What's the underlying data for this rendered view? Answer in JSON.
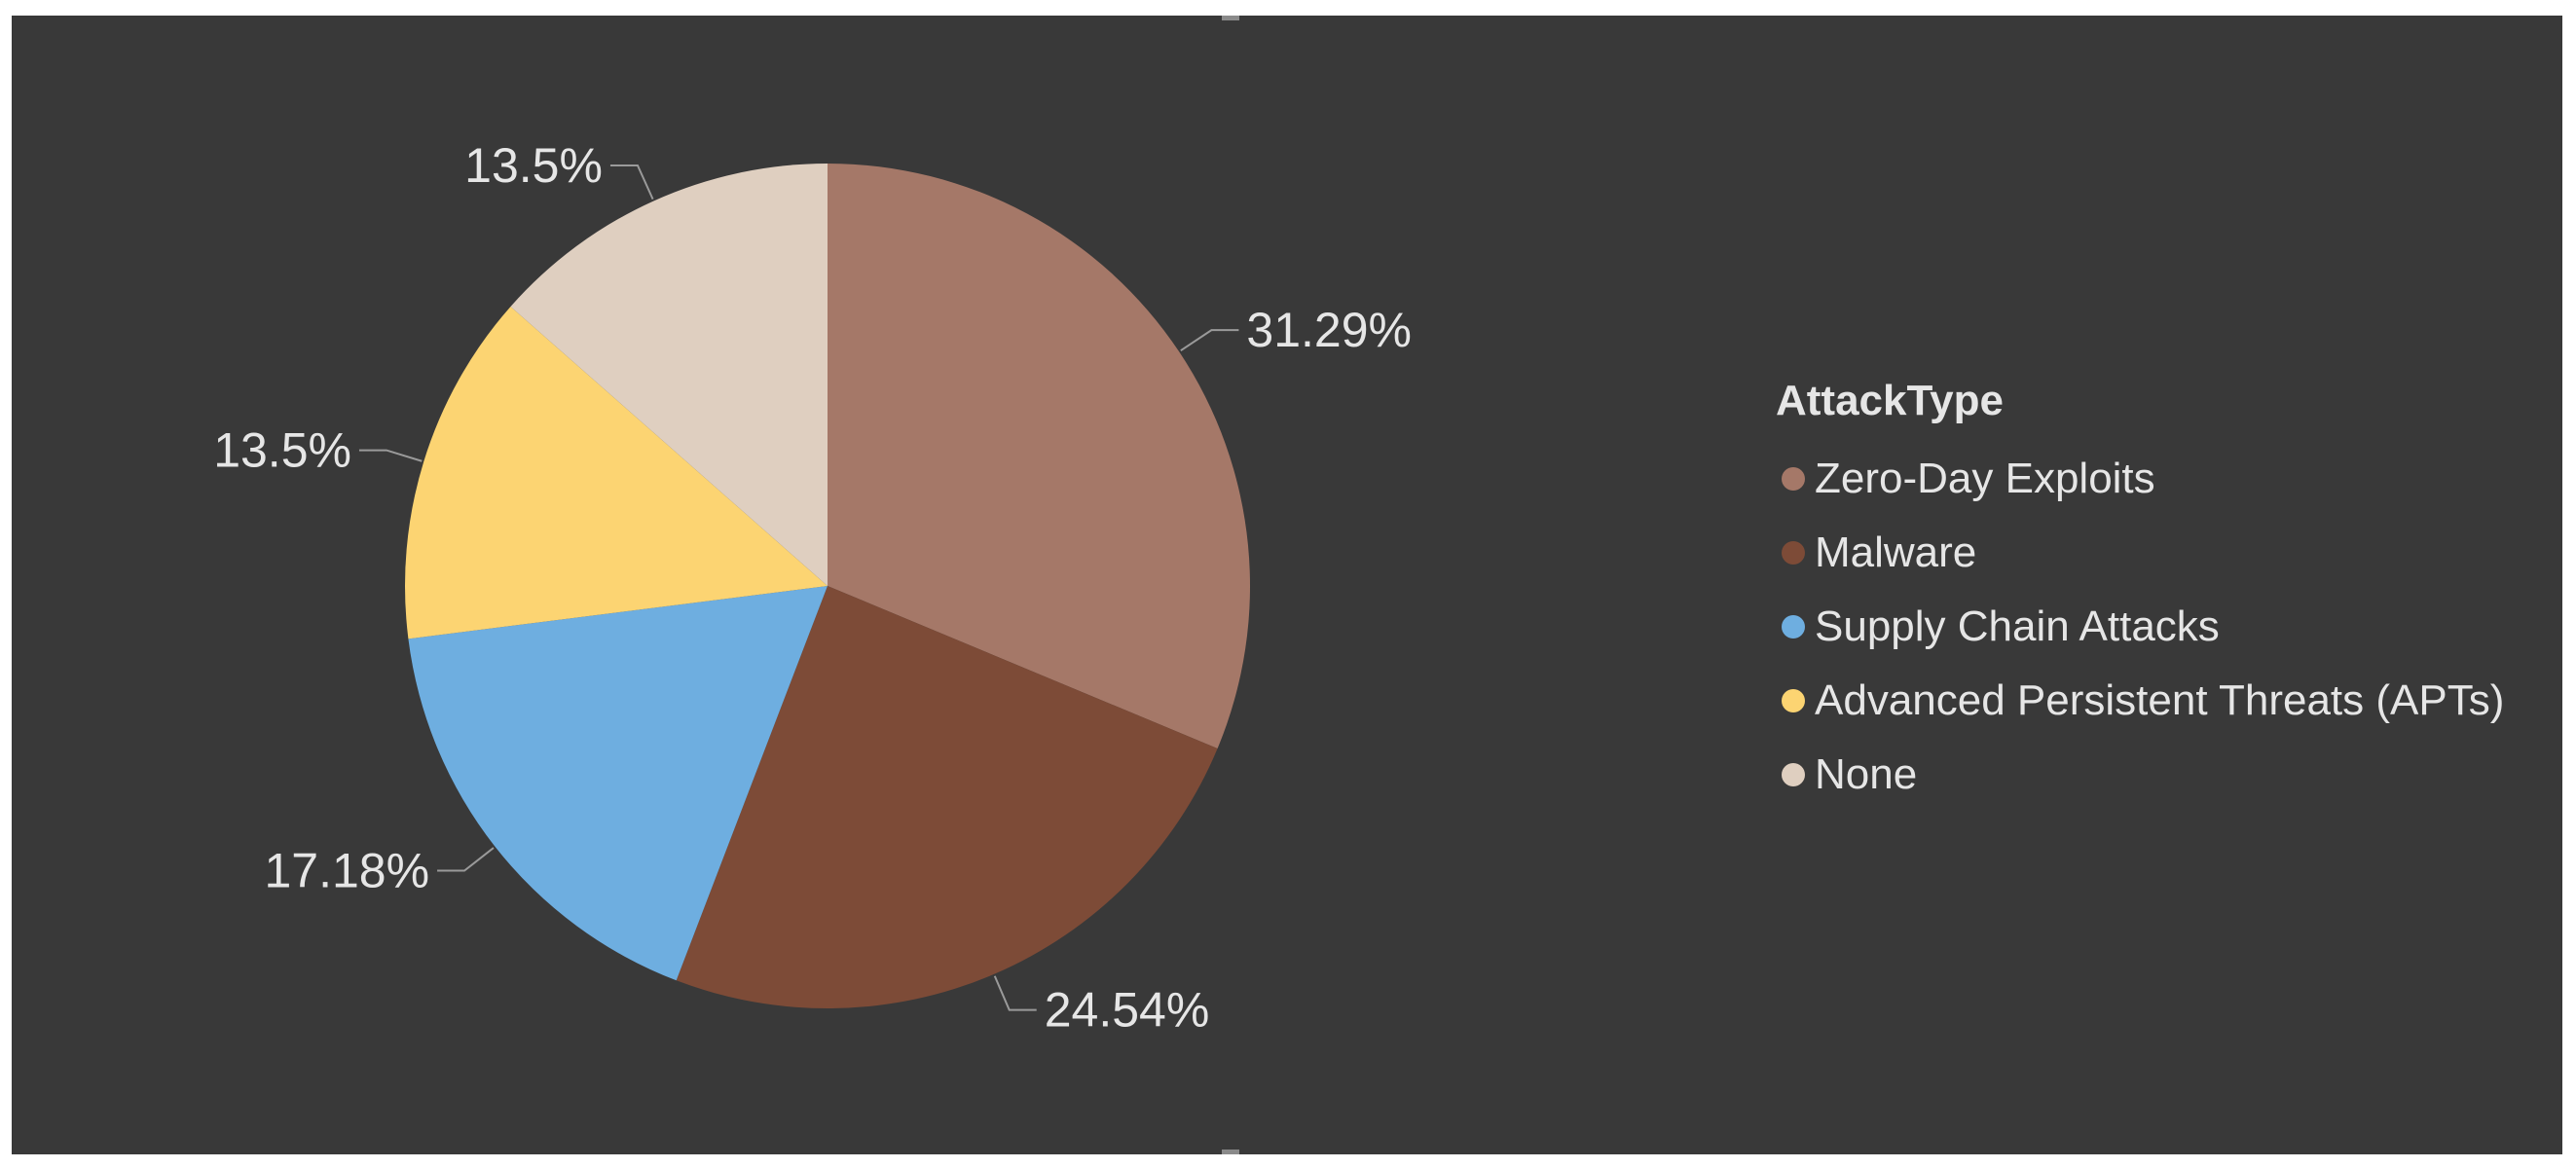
{
  "chart_data": {
    "type": "pie",
    "legend": {
      "title": "AttackType",
      "placement": "right"
    },
    "categories": [
      "Zero-Day Exploits",
      "Malware",
      "Supply Chain Attacks",
      "Advanced Persistent Threats (APTs)",
      "None"
    ],
    "values": [
      31.29,
      24.54,
      17.18,
      13.5,
      13.5
    ],
    "data_labels": [
      "31.29%",
      "24.54%",
      "17.18%",
      "13.5%",
      "13.5%"
    ],
    "colors": [
      "#a57868",
      "#7d4b37",
      "#6eaee0",
      "#fcd472",
      "#dfcfc0"
    ],
    "background": "#393939"
  }
}
